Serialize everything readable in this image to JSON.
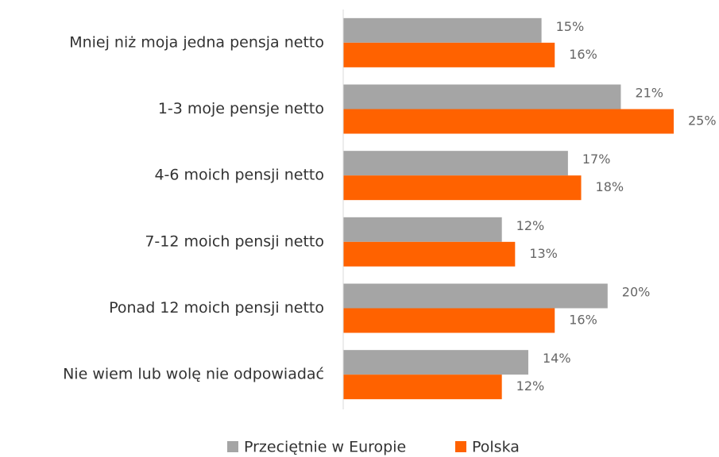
{
  "chart_data": {
    "type": "bar",
    "orientation": "horizontal",
    "categories": [
      "Mniej niż moja jedna pensja netto",
      "1-3 moje pensje netto",
      "4-6 moich pensji netto",
      "7-12 moich pensji netto",
      "Ponad 12 moich pensji netto",
      "Nie wiem lub wolę nie odpowiadać"
    ],
    "series": [
      {
        "name": "Przeciętnie w Europie",
        "color": "#a5a5a5",
        "values": [
          15,
          21,
          17,
          12,
          20,
          14
        ],
        "value_labels": [
          "15%",
          "21%",
          "17%",
          "12%",
          "20%",
          "14%"
        ]
      },
      {
        "name": "Polska",
        "color": "#ff6200",
        "values": [
          16,
          25,
          18,
          13,
          16,
          12
        ],
        "value_labels": [
          "16%",
          "25%",
          "18%",
          "13%",
          "16%",
          "12%"
        ]
      }
    ],
    "xlim": [
      0,
      25
    ],
    "legend": "bottom"
  }
}
